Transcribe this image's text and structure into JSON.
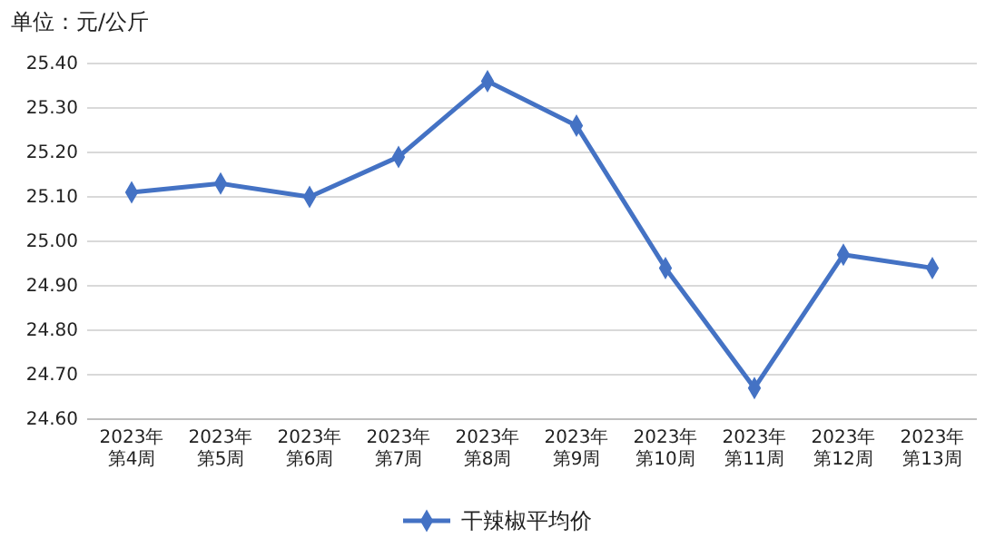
{
  "chart_data": {
    "type": "line",
    "ylabel": "单位：元/公斤",
    "categories": [
      "2023年第4周",
      "2023年第5周",
      "2023年第6周",
      "2023年第7周",
      "2023年第8周",
      "2023年第9周",
      "2023年第10周",
      "2023年第11周",
      "2023年第12周",
      "2023年第13周"
    ],
    "series": [
      {
        "name": "干辣椒平均价",
        "color": "#4472c4",
        "values": [
          25.11,
          25.13,
          25.1,
          25.19,
          25.36,
          25.26,
          24.94,
          24.67,
          24.97,
          24.94
        ]
      }
    ],
    "ylim": [
      24.6,
      25.4
    ],
    "yticks": [
      {
        "value": 24.6,
        "label": "24.60"
      },
      {
        "value": 24.7,
        "label": "24.70"
      },
      {
        "value": 24.8,
        "label": "24.80"
      },
      {
        "value": 24.9,
        "label": "24.90"
      },
      {
        "value": 25.0,
        "label": "25.00"
      },
      {
        "value": 25.1,
        "label": "25.10"
      },
      {
        "value": 25.2,
        "label": "25.20"
      },
      {
        "value": 25.3,
        "label": "25.30"
      },
      {
        "value": 25.4,
        "label": "25.40"
      }
    ],
    "grid": "y",
    "legend": "bottom",
    "marker": "diamond",
    "line_style": "solid"
  }
}
